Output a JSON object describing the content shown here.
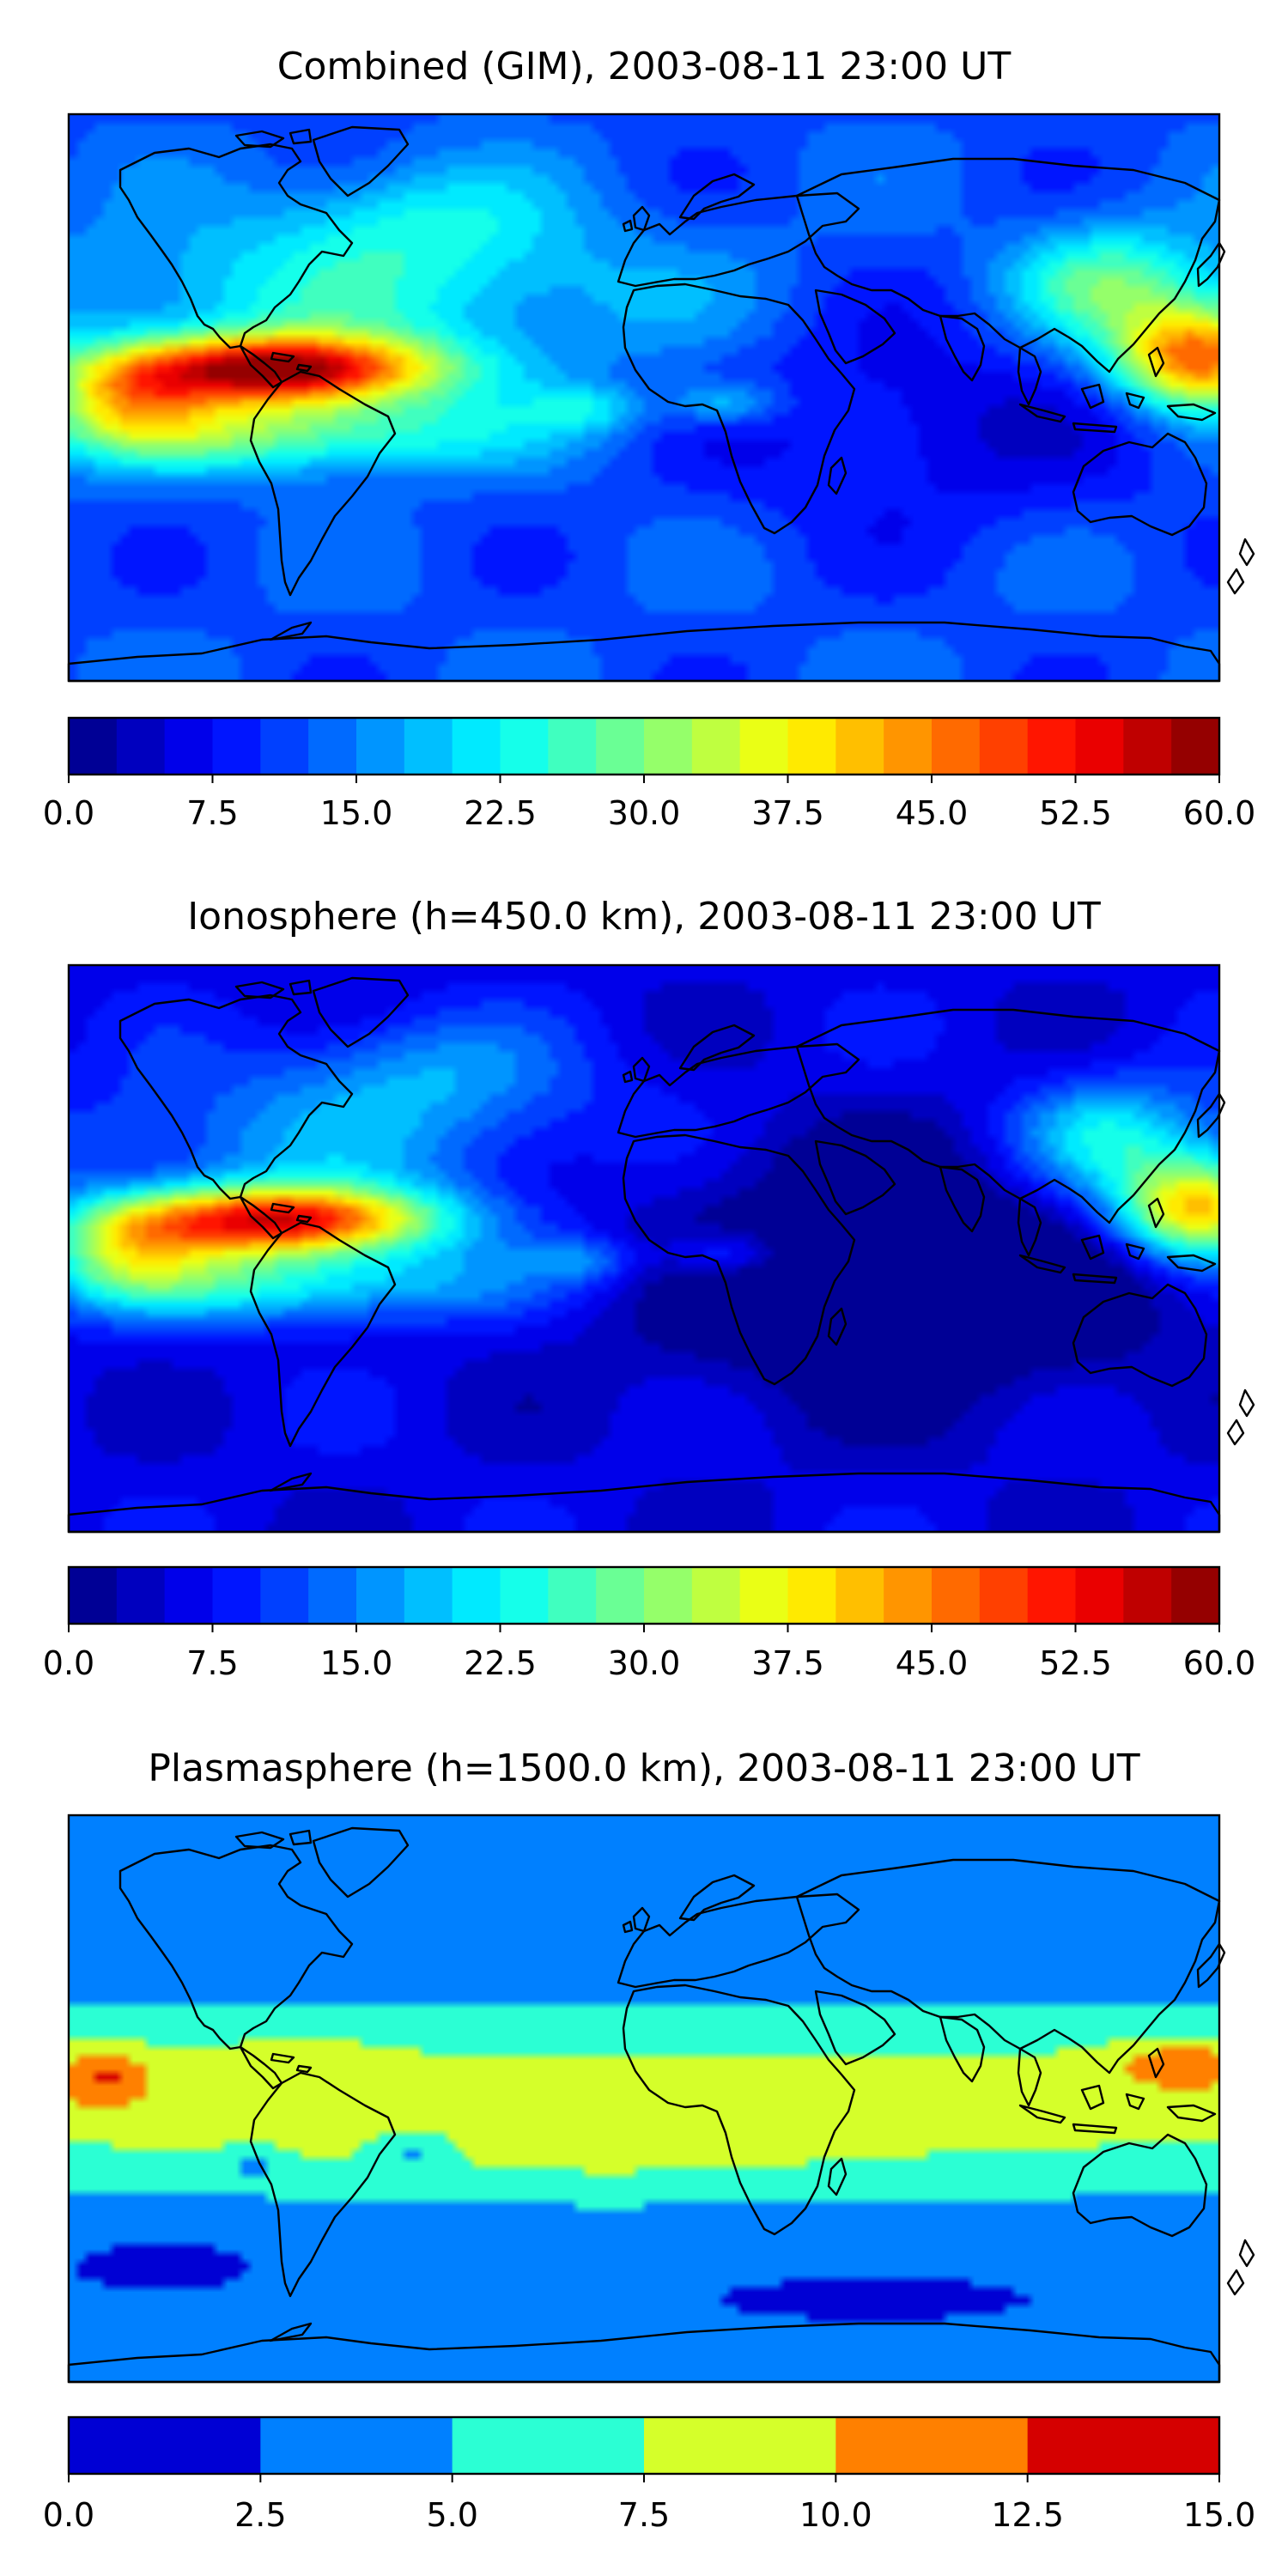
{
  "panels": [
    {
      "title": "Combined (GIM), 2003-08-11 23:00 UT",
      "field": "combined",
      "colorbar": {
        "min": 0,
        "max": 60,
        "levels": 24,
        "ticks": [
          "0.0",
          "7.5",
          "15.0",
          "22.5",
          "30.0",
          "37.5",
          "45.0",
          "52.5",
          "60.0"
        ],
        "colormap": "jet"
      }
    },
    {
      "title": "Ionosphere  (h=450.0 km), 2003-08-11 23:00 UT",
      "field": "ionosphere",
      "colorbar": {
        "min": 0,
        "max": 60,
        "levels": 24,
        "ticks": [
          "0.0",
          "7.5",
          "15.0",
          "22.5",
          "30.0",
          "37.5",
          "45.0",
          "52.5",
          "60.0"
        ],
        "colormap": "jet"
      }
    },
    {
      "title": "Plasmasphere (h=1500.0 km), 2003-08-11 23:00 UT",
      "field": "plasmasphere",
      "colorbar": {
        "min": 0,
        "max": 15,
        "levels": 6,
        "ticks": [
          "0.0",
          "2.5",
          "5.0",
          "7.5",
          "10.0",
          "12.5",
          "15.0"
        ],
        "colormap": "jet"
      }
    }
  ],
  "map": {
    "projection": "plate carree (equirectangular)",
    "coastline_color": "#000000",
    "colormap_stops": [
      "#00007f",
      "#0000ff",
      "#007fff",
      "#00ffff",
      "#7fff7f",
      "#ffff00",
      "#ff7f00",
      "#ff0000",
      "#7f0000"
    ]
  }
}
